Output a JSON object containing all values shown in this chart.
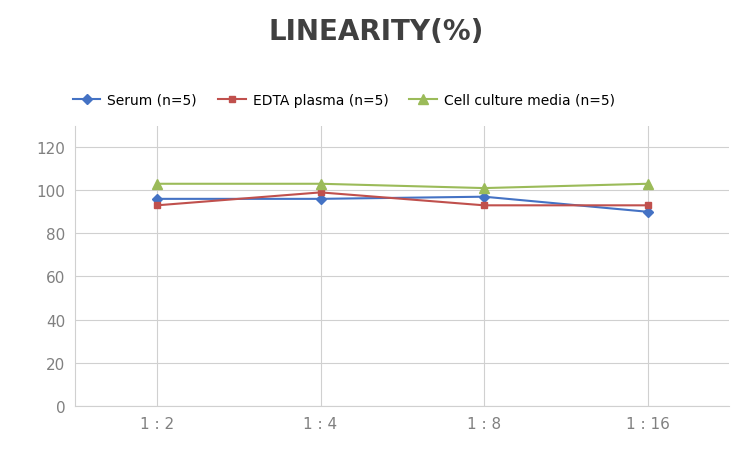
{
  "title": "LINEARITY(%)",
  "title_fontsize": 20,
  "title_fontweight": "bold",
  "x_labels": [
    "1 : 2",
    "1 : 4",
    "1 : 8",
    "1 : 16"
  ],
  "series": [
    {
      "label": "Serum (n=5)",
      "color": "#4472C4",
      "marker": "D",
      "markersize": 5,
      "values": [
        96,
        96,
        97,
        90
      ]
    },
    {
      "label": "EDTA plasma (n=5)",
      "color": "#C0504D",
      "marker": "s",
      "markersize": 5,
      "values": [
        93,
        99,
        93,
        93
      ]
    },
    {
      "label": "Cell culture media (n=5)",
      "color": "#9BBB59",
      "marker": "^",
      "markersize": 7,
      "values": [
        103,
        103,
        101,
        103
      ]
    }
  ],
  "ylim": [
    0,
    130
  ],
  "yticks": [
    0,
    20,
    40,
    60,
    80,
    100,
    120
  ],
  "grid_color": "#D0D0D0",
  "bg_color": "#FFFFFF",
  "legend_fontsize": 10,
  "axis_label_color": "#808080",
  "tick_fontsize": 11,
  "title_color": "#404040"
}
